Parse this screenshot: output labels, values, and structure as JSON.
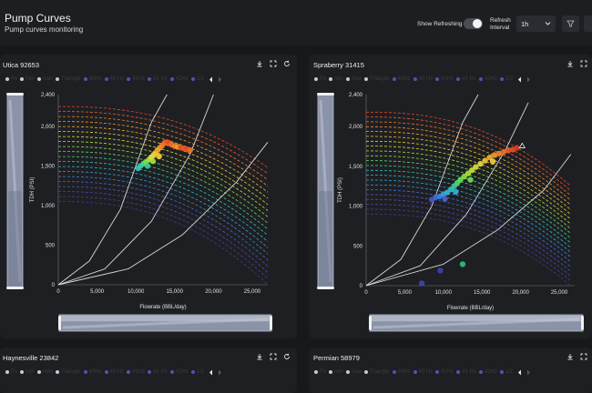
{
  "header": {
    "title": "Pump Curves",
    "subtitle": "Pump curves monitoring",
    "show_refreshing_label": "Show Refreshing",
    "refresh_interval_label_1": "Refresh",
    "refresh_interval_label_2": "Interval",
    "refresh_interval_value": "1h"
  },
  "colors": {
    "background": "#17181b",
    "panel": "#1e1f22",
    "ps_line": "#d8d8d8",
    "slider_fill": "#8b93a8"
  },
  "panels": [
    {
      "title": "Utica 92653"
    },
    {
      "title": "Spraberry 31415"
    },
    {
      "title": "Haynesville 23842"
    },
    {
      "title": "Permian 58979"
    }
  ],
  "legend_items": [
    "Ps",
    "min",
    "max",
    "Triangle",
    "40Hz",
    "40 Hz",
    "41Hz",
    "41 Hz",
    "42Hz",
    "1/2"
  ],
  "icons": [
    "download-icon",
    "fullscreen-icon",
    "refresh-icon",
    "filter-icon",
    "chevron-down-icon",
    "chevron-left-icon",
    "chevron-right-icon"
  ],
  "chart_data": [
    {
      "type": "scatter",
      "panel": "Utica 92653",
      "xlabel": "Flowrate (BBL/day)",
      "ylabel": "TDH (PSI)",
      "xlim": [
        0,
        27000
      ],
      "ylim": [
        0,
        2400
      ],
      "x_ticks": [
        "0",
        "5,000",
        "10,000",
        "15,000",
        "20,000",
        "25,000"
      ],
      "y_ticks": [
        "0",
        "500",
        "1,000",
        "1,500",
        "2,000",
        "2,400"
      ],
      "grid": false,
      "pump_curves": {
        "count": 20,
        "shutoff_top": 2250,
        "shutoff_bottom": 1050,
        "end_x": 27000,
        "end_top": 1480,
        "end_bottom": 0
      },
      "system_curves": [
        {
          "points": [
            [
              0,
              0
            ],
            [
              4000,
              300
            ],
            [
              8000,
              950
            ],
            [
              12000,
              2050
            ],
            [
              14000,
              2400
            ]
          ]
        },
        {
          "points": [
            [
              0,
              0
            ],
            [
              6000,
              200
            ],
            [
              12000,
              800
            ],
            [
              17000,
              1650
            ],
            [
              20000,
              2400
            ]
          ]
        },
        {
          "points": [
            [
              0,
              0
            ],
            [
              9000,
              200
            ],
            [
              16000,
              630
            ],
            [
              23000,
              1300
            ],
            [
              27000,
              1800
            ]
          ]
        }
      ],
      "points": [
        {
          "x": 10300,
          "y": 1470,
          "color": "#27c6c8"
        },
        {
          "x": 10600,
          "y": 1500,
          "color": "#38d0a6"
        },
        {
          "x": 11000,
          "y": 1530,
          "color": "#4fdc7b"
        },
        {
          "x": 11300,
          "y": 1550,
          "color": "#7be04f"
        },
        {
          "x": 11700,
          "y": 1580,
          "color": "#a9e33d"
        },
        {
          "x": 12000,
          "y": 1610,
          "color": "#d8e33b"
        },
        {
          "x": 12300,
          "y": 1640,
          "color": "#f2d83a"
        },
        {
          "x": 12500,
          "y": 1660,
          "color": "#f5c537"
        },
        {
          "x": 12800,
          "y": 1700,
          "color": "#f5b030"
        },
        {
          "x": 13100,
          "y": 1730,
          "color": "#f59a2c"
        },
        {
          "x": 13400,
          "y": 1760,
          "color": "#f4852a"
        },
        {
          "x": 13700,
          "y": 1790,
          "color": "#f07028"
        },
        {
          "x": 14000,
          "y": 1800,
          "color": "#ec5c26"
        },
        {
          "x": 14300,
          "y": 1790,
          "color": "#e84c25"
        },
        {
          "x": 14600,
          "y": 1770,
          "color": "#f07028"
        },
        {
          "x": 15000,
          "y": 1750,
          "color": "#f4852a"
        },
        {
          "x": 15400,
          "y": 1740,
          "color": "#f59a2c"
        },
        {
          "x": 15800,
          "y": 1730,
          "color": "#e84c25"
        },
        {
          "x": 16200,
          "y": 1720,
          "color": "#ec5c26"
        },
        {
          "x": 16600,
          "y": 1710,
          "color": "#e84c25"
        },
        {
          "x": 17000,
          "y": 1700,
          "color": "#f07028"
        },
        {
          "x": 11500,
          "y": 1500,
          "color": "#38d0a6"
        },
        {
          "x": 12200,
          "y": 1560,
          "color": "#a9e33d"
        },
        {
          "x": 13000,
          "y": 1620,
          "color": "#f2d83a"
        }
      ]
    },
    {
      "type": "scatter",
      "panel": "Spraberry 31415",
      "xlabel": "Flowrate (BBL/day)",
      "ylabel": "TDH (PSI)",
      "xlim": [
        0,
        27000
      ],
      "ylim": [
        0,
        2400
      ],
      "x_ticks": [
        "0",
        "5,000",
        "10,000",
        "15,000",
        "20,000",
        "25,000"
      ],
      "y_ticks": [
        "0",
        "500",
        "1,000",
        "1,500",
        "2,000",
        "2,400"
      ],
      "grid": false,
      "pump_curves": {
        "count": 22,
        "shutoff_top": 2180,
        "shutoff_bottom": 900,
        "end_x": 26500,
        "end_top": 1250,
        "end_bottom": 0
      },
      "system_curves": [
        {
          "points": [
            [
              0,
              0
            ],
            [
              4500,
              330
            ],
            [
              8500,
              1000
            ],
            [
              12500,
              2050
            ],
            [
              14500,
              2400
            ]
          ]
        },
        {
          "points": [
            [
              0,
              0
            ],
            [
              7000,
              250
            ],
            [
              13000,
              900
            ],
            [
              18000,
              1700
            ],
            [
              21000,
              2300
            ]
          ]
        },
        {
          "points": [
            [
              0,
              0
            ],
            [
              10000,
              270
            ],
            [
              17000,
              700
            ],
            [
              23000,
              1200
            ],
            [
              26500,
              1650
            ]
          ]
        }
      ],
      "points": [
        {
          "x": 9000,
          "y": 1110,
          "color": "#3b6ad8"
        },
        {
          "x": 9500,
          "y": 1120,
          "color": "#3c84e0"
        },
        {
          "x": 10000,
          "y": 1150,
          "color": "#3ca0e2"
        },
        {
          "x": 10500,
          "y": 1170,
          "color": "#35b4dd"
        },
        {
          "x": 11000,
          "y": 1210,
          "color": "#2cc4c4"
        },
        {
          "x": 11400,
          "y": 1250,
          "color": "#36cf9f"
        },
        {
          "x": 11800,
          "y": 1290,
          "color": "#50db78"
        },
        {
          "x": 12200,
          "y": 1330,
          "color": "#6be05a"
        },
        {
          "x": 12700,
          "y": 1370,
          "color": "#8fe146"
        },
        {
          "x": 13200,
          "y": 1410,
          "color": "#a9e33d"
        },
        {
          "x": 13700,
          "y": 1450,
          "color": "#c4e33b"
        },
        {
          "x": 14200,
          "y": 1490,
          "color": "#dbe03a"
        },
        {
          "x": 14800,
          "y": 1530,
          "color": "#f2d83a"
        },
        {
          "x": 15400,
          "y": 1570,
          "color": "#f5c537"
        },
        {
          "x": 16000,
          "y": 1610,
          "color": "#f5b030"
        },
        {
          "x": 16600,
          "y": 1640,
          "color": "#f59a2c"
        },
        {
          "x": 17200,
          "y": 1660,
          "color": "#f4852a"
        },
        {
          "x": 17800,
          "y": 1680,
          "color": "#f07028"
        },
        {
          "x": 18400,
          "y": 1700,
          "color": "#ec5c26"
        },
        {
          "x": 19000,
          "y": 1710,
          "color": "#e84c25"
        },
        {
          "x": 10200,
          "y": 1090,
          "color": "#4b62d4"
        },
        {
          "x": 11600,
          "y": 1180,
          "color": "#35b4dd"
        },
        {
          "x": 13500,
          "y": 1330,
          "color": "#6be05a"
        },
        {
          "x": 16400,
          "y": 1560,
          "color": "#f2d83a"
        },
        {
          "x": 8500,
          "y": 1080,
          "color": "#4a55c0"
        },
        {
          "x": 19500,
          "y": 1730,
          "color": "#e03a24"
        },
        {
          "x": 12500,
          "y": 270,
          "color": "#2ec27e"
        },
        {
          "x": 9600,
          "y": 190,
          "color": "#3b44b8"
        },
        {
          "x": 7200,
          "y": 30,
          "color": "#3b44b8"
        }
      ],
      "triangle": {
        "x": 20200,
        "y": 1755
      }
    }
  ]
}
